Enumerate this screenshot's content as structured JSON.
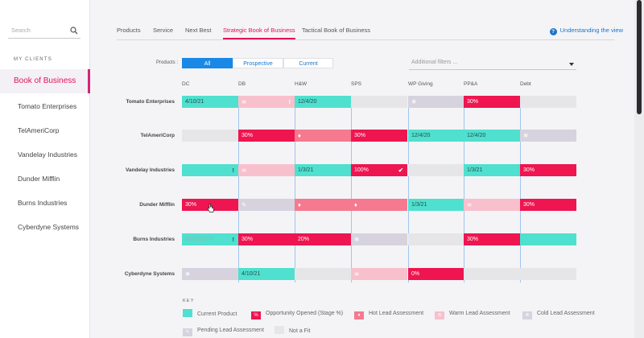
{
  "sidebar": {
    "search_placeholder": "Search",
    "section_title": "MY CLIENTS",
    "items": [
      {
        "label": "Book of Business",
        "active": true
      },
      {
        "label": "Tomato Enterprises"
      },
      {
        "label": "TelAmeriCorp"
      },
      {
        "label": "Vandelay Industries"
      },
      {
        "label": "Dunder Mifflin"
      },
      {
        "label": "Burns Industries"
      },
      {
        "label": "Cyberdyne Systems"
      }
    ]
  },
  "tabs": [
    {
      "label": "Products"
    },
    {
      "label": "Service"
    },
    {
      "label": "Next Best"
    },
    {
      "label": "Strategic Book of Business",
      "active": true
    },
    {
      "label": "Tactical Book of Business"
    }
  ],
  "help_link": "Understanding the view",
  "products": {
    "label": "Products :",
    "options": [
      "All",
      "Prospective",
      "Current"
    ],
    "selected": "All"
  },
  "filters_placeholder": "Additional filters ...",
  "columns": [
    "DC",
    "DB",
    "H&W",
    "SPS",
    "WP Giving",
    "PP&A",
    "Debt"
  ],
  "rows": [
    {
      "client": "Tomato Enterprises",
      "cells": [
        {
          "type": "current",
          "text": "4/10/21"
        },
        {
          "type": "warm",
          "icon": "warm-lead-icon",
          "mark": "!"
        },
        {
          "type": "current",
          "text": "12/4/20"
        },
        {
          "type": "nofit"
        },
        {
          "type": "cold",
          "icon": "cold-lead-icon"
        },
        {
          "type": "opp",
          "text": "30%"
        },
        {
          "type": "nofit"
        }
      ]
    },
    {
      "client": "TelAmeriCorp",
      "cells": [
        {
          "type": "nofit"
        },
        {
          "type": "opp",
          "text": "30%"
        },
        {
          "type": "hot",
          "icon": "hot-lead-icon"
        },
        {
          "type": "opp",
          "text": "30%"
        },
        {
          "type": "current",
          "text": "12/4/20"
        },
        {
          "type": "current",
          "text": "12/4/20"
        },
        {
          "type": "cold",
          "icon": "cold-lead-icon"
        }
      ]
    },
    {
      "client": "Vandelay Industries",
      "cells": [
        {
          "type": "current",
          "mark": "!"
        },
        {
          "type": "warm",
          "icon": "warm-lead-icon"
        },
        {
          "type": "current",
          "text": "1/3/21"
        },
        {
          "type": "opp",
          "text": "100%",
          "mark": "✔"
        },
        {
          "type": "nofit"
        },
        {
          "type": "current",
          "text": "1/3/21"
        },
        {
          "type": "opp",
          "text": "30%"
        }
      ]
    },
    {
      "client": "Dunder Mifflin",
      "cells": [
        {
          "type": "opp",
          "text": "30%"
        },
        {
          "type": "pending",
          "icon": "pending-lead-icon"
        },
        {
          "type": "hot",
          "icon": "hot-lead-icon"
        },
        {
          "type": "hot",
          "icon": "hot-lead-icon"
        },
        {
          "type": "current",
          "text": "1/3/21"
        },
        {
          "type": "warm",
          "icon": "warm-lead-icon"
        },
        {
          "type": "opp",
          "text": "30%"
        }
      ]
    },
    {
      "client": "Burns Industries",
      "cells": [
        {
          "type": "current",
          "placeholder": "MM/DD/YY",
          "mark": "!"
        },
        {
          "type": "opp",
          "text": "30%"
        },
        {
          "type": "opp",
          "text": "20%"
        },
        {
          "type": "cold",
          "icon": "cold-lead-icon"
        },
        {
          "type": "nofit"
        },
        {
          "type": "opp",
          "text": "30%"
        },
        {
          "type": "current"
        }
      ]
    },
    {
      "client": "Cyberdyne Systems",
      "cells": [
        {
          "type": "cold",
          "icon": "cold-lead-icon"
        },
        {
          "type": "current",
          "text": "4/10/21"
        },
        {
          "type": "nofit"
        },
        {
          "type": "warm",
          "icon": "warm-lead-icon"
        },
        {
          "type": "opp",
          "text": "0%"
        },
        {
          "type": "nofit"
        },
        {
          "type": "nofit"
        }
      ]
    }
  ],
  "key": {
    "title": "KEY",
    "items": [
      {
        "type": "current",
        "label": "Current Product"
      },
      {
        "type": "opp",
        "label": "Opportunity Opened (Stage %)",
        "symbol": "%"
      },
      {
        "type": "hot",
        "label": "Hot Lead Assessment",
        "icon": "hot-lead-icon"
      },
      {
        "type": "warm",
        "label": "Warm Lead Assessment",
        "icon": "warm-lead-icon"
      },
      {
        "type": "cold",
        "label": "Cold Lead Assessment",
        "icon": "cold-lead-icon"
      },
      {
        "type": "pending",
        "label": "Pending Lead Assessment",
        "icon": "pending-lead-icon"
      },
      {
        "type": "nofit",
        "label": "Not a Fit"
      }
    ]
  },
  "colors": {
    "accent": "#e2135a",
    "link": "#1a75c9",
    "current": "#4fe0cf",
    "opportunity": "#ee1550",
    "hot": "#f5798f",
    "warm": "#f8c0cc",
    "cold": "#d6d3de",
    "nofit": "#e6e6e9"
  }
}
